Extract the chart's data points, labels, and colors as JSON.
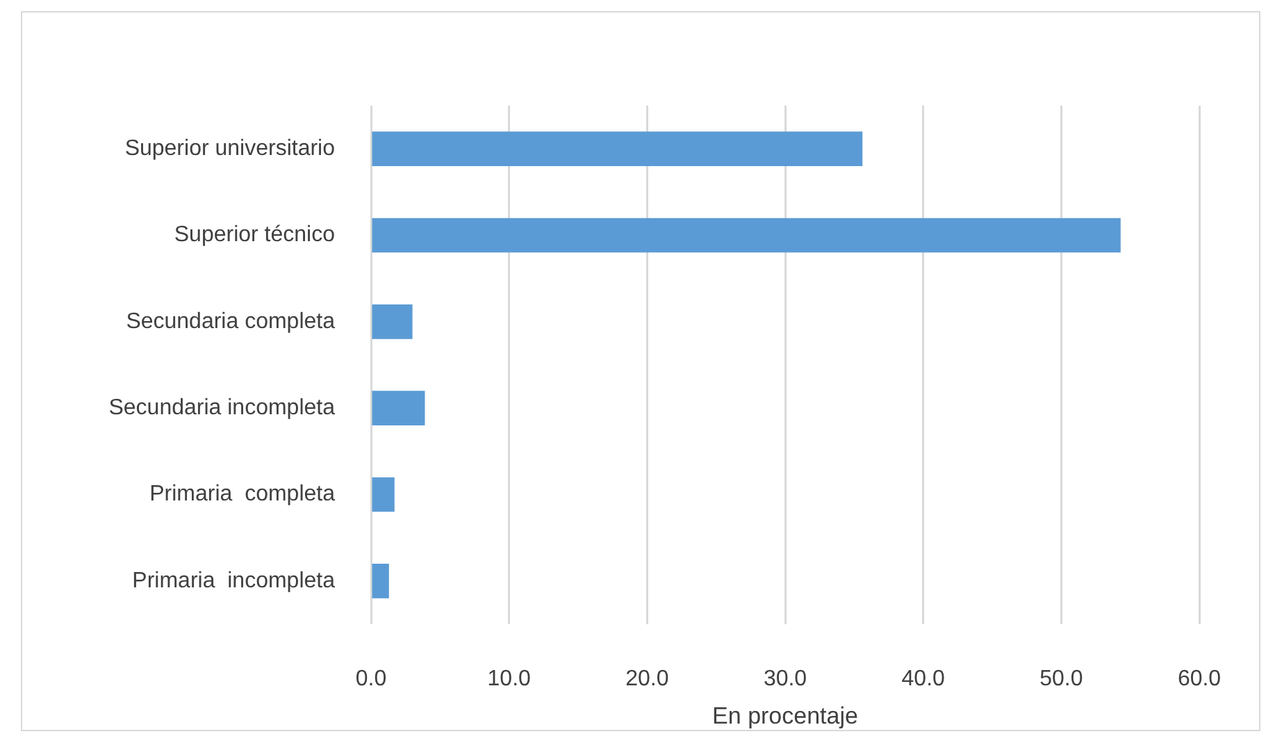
{
  "chart_data": {
    "type": "bar",
    "orientation": "horizontal",
    "xlabel": "En procentaje",
    "categories": [
      "Superior universitario",
      "Superior técnico",
      "Secundaria completa",
      "Secundaria incompleta",
      "Primaria  completa",
      "Primaria  incompleta"
    ],
    "values": [
      35.6,
      54.3,
      3.0,
      3.9,
      1.7,
      1.3
    ],
    "color": "#5b9bd5",
    "xlim": [
      0,
      60
    ],
    "xticks": [
      {
        "value": 0,
        "label": "0.0"
      },
      {
        "value": 10,
        "label": "10.0"
      },
      {
        "value": 20,
        "label": "20.0"
      },
      {
        "value": 30,
        "label": "30.0"
      },
      {
        "value": 40,
        "label": "40.0"
      },
      {
        "value": 50,
        "label": "50.0"
      },
      {
        "value": 60,
        "label": "60.0"
      }
    ],
    "grid": "x"
  }
}
